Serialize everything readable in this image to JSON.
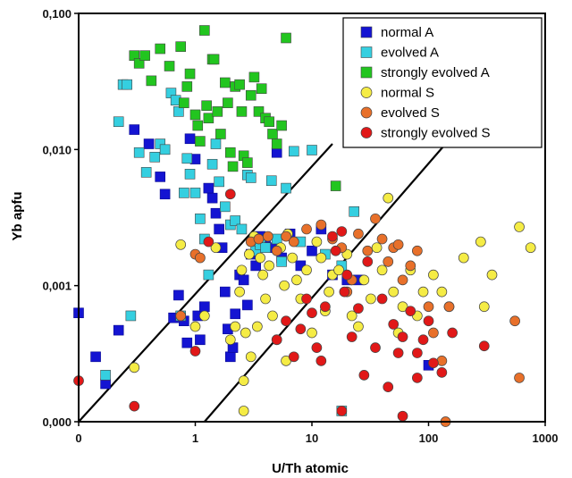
{
  "chart_data": {
    "type": "scatter",
    "title": "",
    "xlabel": "U/Th atomic",
    "ylabel": "Yb apfu",
    "x_scale": "log",
    "y_scale": "log",
    "xlim": [
      0.1,
      1000
    ],
    "ylim": [
      0.0001,
      0.1
    ],
    "x_ticks": [
      {
        "value": 0.1,
        "label": "0"
      },
      {
        "value": 1,
        "label": "1"
      },
      {
        "value": 10,
        "label": "10"
      },
      {
        "value": 100,
        "label": "100"
      },
      {
        "value": 1000,
        "label": "1000"
      }
    ],
    "y_ticks": [
      {
        "value": 0.0001,
        "label": "0,000"
      },
      {
        "value": 0.001,
        "label": "0,001"
      },
      {
        "value": 0.01,
        "label": "0,010"
      },
      {
        "value": 0.1,
        "label": "0,100"
      }
    ],
    "grid": false,
    "legend_position": "top-right",
    "reference_lines": [
      {
        "points": [
          [
            0.1,
            0.0001
          ],
          [
            15,
            0.011
          ]
        ]
      },
      {
        "points": [
          [
            1.2,
            0.0001
          ],
          [
            140,
            0.011
          ]
        ]
      }
    ],
    "series": [
      {
        "name": "normal A",
        "marker": "square",
        "color": "#1414d2",
        "points": [
          [
            0.1,
            0.00063
          ],
          [
            0.14,
            0.0003
          ],
          [
            0.17,
            0.00019
          ],
          [
            0.22,
            0.00047
          ],
          [
            0.3,
            0.014
          ],
          [
            0.4,
            0.011
          ],
          [
            0.5,
            0.0063
          ],
          [
            0.55,
            0.0047
          ],
          [
            0.65,
            0.00058
          ],
          [
            0.72,
            0.00085
          ],
          [
            0.8,
            0.00055
          ],
          [
            0.85,
            0.00038
          ],
          [
            0.9,
            0.012
          ],
          [
            1.0,
            0.0085
          ],
          [
            1.05,
            0.0006
          ],
          [
            1.1,
            0.0004
          ],
          [
            1.2,
            0.0007
          ],
          [
            1.3,
            0.0052
          ],
          [
            1.4,
            0.0044
          ],
          [
            1.5,
            0.0034
          ],
          [
            1.6,
            0.0026
          ],
          [
            1.7,
            0.0019
          ],
          [
            1.8,
            0.0009
          ],
          [
            1.9,
            0.00048
          ],
          [
            2.0,
            0.0003
          ],
          [
            2.1,
            0.00035
          ],
          [
            2.2,
            0.00062
          ],
          [
            2.4,
            0.0012
          ],
          [
            2.6,
            0.0011
          ],
          [
            2.8,
            0.00072
          ],
          [
            3.0,
            0.0017
          ],
          [
            3.3,
            0.0014
          ],
          [
            3.6,
            0.0023
          ],
          [
            4.0,
            0.0021
          ],
          [
            4.5,
            0.0019
          ],
          [
            5.0,
            0.0095
          ],
          [
            5.5,
            0.0016
          ],
          [
            6.5,
            0.0024
          ],
          [
            8.0,
            0.0014
          ],
          [
            10,
            0.0018
          ],
          [
            12,
            0.0026
          ],
          [
            15,
            0.0012
          ],
          [
            20,
            0.0011
          ],
          [
            25,
            0.0011
          ],
          [
            100,
            0.00026
          ]
        ]
      },
      {
        "name": "evolved A",
        "marker": "square",
        "color": "#35cfe0",
        "points": [
          [
            0.17,
            0.00022
          ],
          [
            0.22,
            0.016
          ],
          [
            0.24,
            0.03
          ],
          [
            0.26,
            0.03
          ],
          [
            0.28,
            0.0006
          ],
          [
            0.33,
            0.0095
          ],
          [
            0.38,
            0.0068
          ],
          [
            0.45,
            0.0088
          ],
          [
            0.5,
            0.011
          ],
          [
            0.55,
            0.01
          ],
          [
            0.62,
            0.026
          ],
          [
            0.68,
            0.023
          ],
          [
            0.72,
            0.019
          ],
          [
            0.75,
            0.0006
          ],
          [
            0.8,
            0.0048
          ],
          [
            0.85,
            0.0086
          ],
          [
            0.9,
            0.0066
          ],
          [
            1.0,
            0.0048
          ],
          [
            1.1,
            0.0031
          ],
          [
            1.2,
            0.0022
          ],
          [
            1.3,
            0.0012
          ],
          [
            1.4,
            0.0078
          ],
          [
            1.5,
            0.011
          ],
          [
            1.6,
            0.0058
          ],
          [
            1.8,
            0.0038
          ],
          [
            2.0,
            0.0028
          ],
          [
            2.2,
            0.003
          ],
          [
            2.5,
            0.0026
          ],
          [
            2.8,
            0.0065
          ],
          [
            3.0,
            0.0062
          ],
          [
            3.3,
            0.0018
          ],
          [
            3.6,
            0.002
          ],
          [
            4.0,
            0.0019
          ],
          [
            4.5,
            0.0059
          ],
          [
            5.0,
            0.0022
          ],
          [
            5.5,
            0.0015
          ],
          [
            6.0,
            0.0052
          ],
          [
            7.0,
            0.0097
          ],
          [
            8.0,
            0.0021
          ],
          [
            10,
            0.0099
          ],
          [
            13,
            0.0017
          ],
          [
            18,
            0.0014
          ],
          [
            23,
            0.0035
          ],
          [
            18,
            0.00012
          ]
        ]
      },
      {
        "name": "strongly evolved A",
        "marker": "square",
        "color": "#22c51f",
        "points": [
          [
            0.3,
            0.049
          ],
          [
            0.33,
            0.043
          ],
          [
            0.37,
            0.049
          ],
          [
            0.42,
            0.032
          ],
          [
            0.5,
            0.055
          ],
          [
            0.6,
            0.041
          ],
          [
            0.75,
            0.057
          ],
          [
            0.8,
            0.022
          ],
          [
            0.85,
            0.029
          ],
          [
            0.9,
            0.036
          ],
          [
            1.0,
            0.018
          ],
          [
            1.05,
            0.015
          ],
          [
            1.1,
            0.0115
          ],
          [
            1.2,
            0.075
          ],
          [
            1.25,
            0.021
          ],
          [
            1.3,
            0.017
          ],
          [
            1.4,
            0.046
          ],
          [
            1.45,
            0.046
          ],
          [
            1.55,
            0.019
          ],
          [
            1.65,
            0.013
          ],
          [
            1.8,
            0.031
          ],
          [
            1.9,
            0.022
          ],
          [
            2.0,
            0.0095
          ],
          [
            2.1,
            0.0075
          ],
          [
            2.2,
            0.029
          ],
          [
            2.4,
            0.03
          ],
          [
            2.5,
            0.019
          ],
          [
            2.6,
            0.009
          ],
          [
            2.8,
            0.008
          ],
          [
            3.0,
            0.025
          ],
          [
            3.2,
            0.034
          ],
          [
            3.5,
            0.019
          ],
          [
            3.7,
            0.028
          ],
          [
            4.0,
            0.017
          ],
          [
            4.3,
            0.016
          ],
          [
            4.6,
            0.013
          ],
          [
            5.0,
            0.011
          ],
          [
            5.5,
            0.015
          ],
          [
            6.0,
            0.066
          ],
          [
            16,
            0.0054
          ]
        ]
      },
      {
        "name": "normal S",
        "marker": "circle",
        "color": "#f5ec45",
        "points": [
          [
            0.3,
            0.00025
          ],
          [
            0.75,
            0.002
          ],
          [
            1.0,
            0.0005
          ],
          [
            1.2,
            0.0006
          ],
          [
            1.5,
            0.0019
          ],
          [
            2.0,
            0.0004
          ],
          [
            2.2,
            0.0005
          ],
          [
            2.4,
            0.0009
          ],
          [
            2.5,
            0.0013
          ],
          [
            2.6,
            0.0002
          ],
          [
            2.7,
            0.00045
          ],
          [
            2.9,
            0.0017
          ],
          [
            3.0,
            0.0003
          ],
          [
            3.2,
            0.0023
          ],
          [
            3.4,
            0.0005
          ],
          [
            3.6,
            0.0016
          ],
          [
            3.8,
            0.0012
          ],
          [
            4.0,
            0.0008
          ],
          [
            4.3,
            0.0014
          ],
          [
            4.6,
            0.0006
          ],
          [
            5.0,
            0.0004
          ],
          [
            5.4,
            0.0019
          ],
          [
            5.8,
            0.001
          ],
          [
            6.2,
            0.0024
          ],
          [
            6.8,
            0.0016
          ],
          [
            7.4,
            0.0011
          ],
          [
            8.0,
            0.0008
          ],
          [
            9.0,
            0.0013
          ],
          [
            10,
            0.00045
          ],
          [
            11,
            0.0021
          ],
          [
            12,
            0.0016
          ],
          [
            13,
            0.00065
          ],
          [
            14,
            0.0009
          ],
          [
            15,
            0.0012
          ],
          [
            17,
            0.0013
          ],
          [
            20,
            0.0017
          ],
          [
            22,
            0.0006
          ],
          [
            25,
            0.0005
          ],
          [
            28,
            0.0011
          ],
          [
            32,
            0.0008
          ],
          [
            36,
            0.0019
          ],
          [
            40,
            0.0013
          ],
          [
            45,
            0.0044
          ],
          [
            50,
            0.0009
          ],
          [
            55,
            0.00045
          ],
          [
            60,
            0.0007
          ],
          [
            70,
            0.0013
          ],
          [
            80,
            0.0006
          ],
          [
            90,
            0.0009
          ],
          [
            110,
            0.0012
          ],
          [
            130,
            0.0009
          ],
          [
            150,
            0.0007
          ],
          [
            200,
            0.0016
          ],
          [
            280,
            0.0021
          ],
          [
            300,
            0.0007
          ],
          [
            350,
            0.0012
          ],
          [
            600,
            0.0027
          ],
          [
            750,
            0.0019
          ],
          [
            2.6,
            0.00012
          ],
          [
            6.0,
            0.00028
          ]
        ]
      },
      {
        "name": "evolved S",
        "marker": "circle",
        "color": "#e8702a",
        "points": [
          [
            0.75,
            0.0006
          ],
          [
            1.0,
            0.0017
          ],
          [
            1.1,
            0.0016
          ],
          [
            3.0,
            0.0021
          ],
          [
            3.5,
            0.0022
          ],
          [
            4.2,
            0.0023
          ],
          [
            5.0,
            0.0018
          ],
          [
            6.0,
            0.0023
          ],
          [
            7.0,
            0.0021
          ],
          [
            9.0,
            0.0026
          ],
          [
            12,
            0.0028
          ],
          [
            15,
            0.0022
          ],
          [
            18,
            0.0019
          ],
          [
            20,
            0.0009
          ],
          [
            22,
            0.0011
          ],
          [
            25,
            0.0024
          ],
          [
            30,
            0.0018
          ],
          [
            35,
            0.0031
          ],
          [
            40,
            0.0022
          ],
          [
            45,
            0.0015
          ],
          [
            50,
            0.0019
          ],
          [
            55,
            0.002
          ],
          [
            60,
            0.0011
          ],
          [
            70,
            0.0014
          ],
          [
            80,
            0.0018
          ],
          [
            100,
            0.0007
          ],
          [
            110,
            0.00045
          ],
          [
            130,
            0.00028
          ],
          [
            150,
            0.0007
          ],
          [
            140,
            0.0001
          ],
          [
            550,
            0.00055
          ],
          [
            600,
            0.00021
          ]
        ]
      },
      {
        "name": "strongly evolved S",
        "marker": "circle",
        "color": "#e11818",
        "points": [
          [
            0.1,
            0.0002
          ],
          [
            0.3,
            0.00013
          ],
          [
            1.0,
            0.00033
          ],
          [
            1.3,
            0.0021
          ],
          [
            2.0,
            0.0047
          ],
          [
            5.0,
            0.0004
          ],
          [
            6.0,
            0.00055
          ],
          [
            7.0,
            0.0003
          ],
          [
            8.0,
            0.00048
          ],
          [
            9.0,
            0.0008
          ],
          [
            10,
            0.00063
          ],
          [
            11,
            0.00035
          ],
          [
            12,
            0.00028
          ],
          [
            13,
            0.0007
          ],
          [
            15,
            0.0023
          ],
          [
            16,
            0.0018
          ],
          [
            18,
            0.0025
          ],
          [
            19,
            0.0009
          ],
          [
            20,
            0.0012
          ],
          [
            22,
            0.00042
          ],
          [
            25,
            0.00068
          ],
          [
            28,
            0.00022
          ],
          [
            30,
            0.0015
          ],
          [
            35,
            0.00035
          ],
          [
            40,
            0.0008
          ],
          [
            45,
            0.00018
          ],
          [
            50,
            0.00052
          ],
          [
            55,
            0.00032
          ],
          [
            60,
            0.00042
          ],
          [
            70,
            0.00065
          ],
          [
            80,
            0.00032
          ],
          [
            90,
            0.0004
          ],
          [
            100,
            0.00055
          ],
          [
            110,
            0.00027
          ],
          [
            130,
            0.00023
          ],
          [
            160,
            0.00045
          ],
          [
            300,
            0.00036
          ],
          [
            60,
            0.00011
          ],
          [
            18,
            0.00012
          ],
          [
            80,
            0.00021
          ]
        ]
      }
    ]
  }
}
